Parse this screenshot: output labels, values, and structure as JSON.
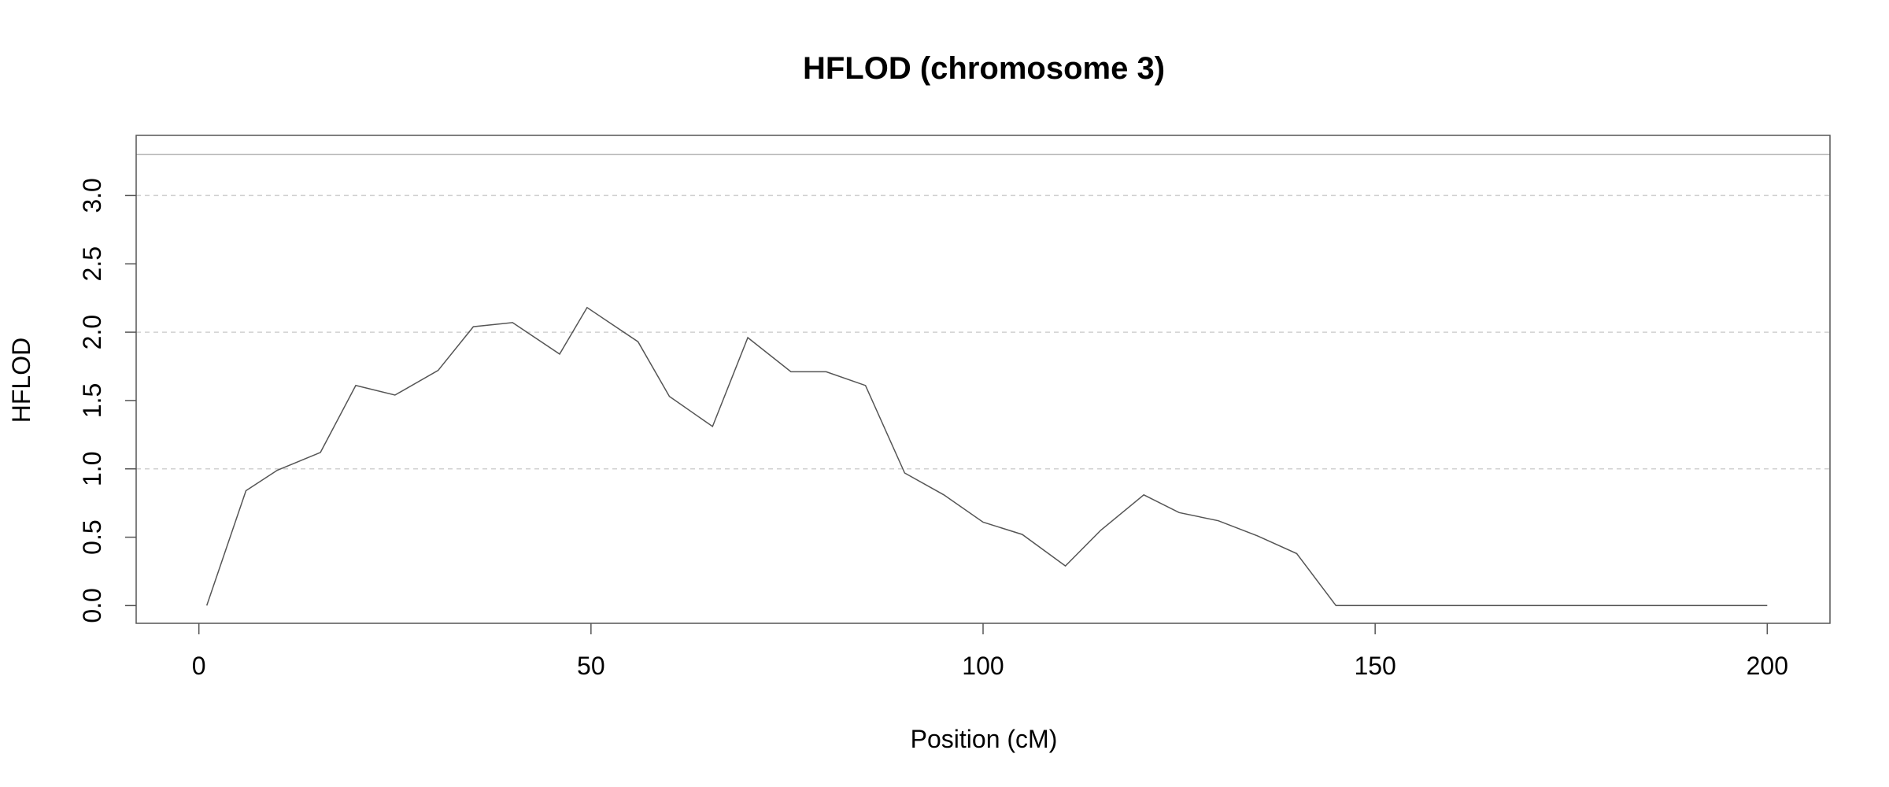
{
  "chart_data": {
    "type": "line",
    "title": "HFLOD (chromosome 3)",
    "xlabel": "Position (cM)",
    "ylabel": "HFLOD",
    "xlim": [
      -8,
      208
    ],
    "ylim": [
      -0.13,
      3.44
    ],
    "xticks": [
      0,
      50,
      100,
      150,
      200
    ],
    "xtick_labels": [
      "0",
      "50",
      "100",
      "150",
      "200"
    ],
    "yticks": [
      0.0,
      0.5,
      1.0,
      1.5,
      2.0,
      2.5,
      3.0
    ],
    "ytick_labels": [
      "0.0",
      "0.5",
      "1.0",
      "1.5",
      "2.0",
      "2.5",
      "3.0"
    ],
    "grid": {
      "horizontal_dashed_at": [
        1.0,
        2.0,
        3.0
      ],
      "style": "dashed",
      "color": "#d0d0d0"
    },
    "threshold_line": {
      "y": 3.3,
      "color": "#b8b8b8"
    },
    "line_color": "#555555",
    "series": [
      {
        "x": [
          1,
          6,
          10,
          15.5,
          20,
          25,
          30.5,
          35,
          40,
          46,
          49.5,
          56,
          60,
          65.5,
          70,
          75.5,
          80,
          85,
          90,
          95,
          100,
          105,
          110.5,
          115,
          120.5,
          125,
          130,
          135,
          140,
          145,
          150,
          160,
          170,
          180,
          190,
          200
        ],
        "y": [
          0.0,
          0.84,
          0.99,
          1.12,
          1.61,
          1.54,
          1.72,
          2.04,
          2.07,
          1.84,
          2.18,
          1.93,
          1.53,
          1.31,
          1.96,
          1.71,
          1.71,
          1.61,
          0.97,
          0.81,
          0.61,
          0.52,
          0.29,
          0.55,
          0.81,
          0.68,
          0.62,
          0.51,
          0.38,
          0.0,
          0.0,
          0.0,
          0.0,
          0.0,
          0.0,
          0.0
        ]
      }
    ]
  }
}
